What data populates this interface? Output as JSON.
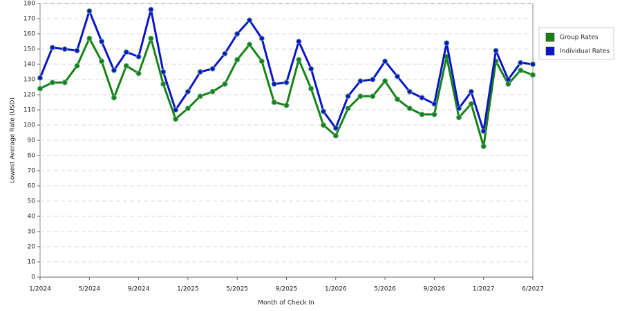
{
  "chart_data": {
    "type": "line",
    "x_label": "Month of Check In",
    "y_label": "Lowest Average Rate (USD)",
    "categories": [
      "1/2024",
      null,
      null,
      null,
      "5/2024",
      null,
      null,
      null,
      "9/2024",
      null,
      null,
      null,
      "1/2025",
      null,
      null,
      null,
      "5/2025",
      null,
      null,
      null,
      "9/2025",
      null,
      null,
      null,
      "1/2026",
      null,
      null,
      null,
      "5/2026",
      null,
      null,
      null,
      "9/2026",
      null,
      null,
      null,
      "1/2027",
      null,
      null,
      null,
      "6/2027"
    ],
    "series": [
      {
        "name": "Group Rates",
        "color": "#148214",
        "values": [
          124,
          128,
          128,
          139,
          157,
          142,
          118,
          139,
          134,
          157,
          127,
          104,
          111,
          119,
          122,
          127,
          143,
          153,
          142,
          115,
          113,
          143,
          124,
          100,
          93,
          111,
          119,
          119,
          129,
          117,
          111,
          107,
          107,
          145,
          105,
          114,
          86,
          142,
          127,
          136,
          133
        ]
      },
      {
        "name": "Individual Rates",
        "color": "#0a14c8",
        "values": [
          131,
          151,
          150,
          149,
          175,
          155,
          136,
          148,
          145,
          176,
          135,
          110,
          122,
          135,
          137,
          147,
          160,
          169,
          157,
          127,
          128,
          155,
          137,
          109,
          98,
          119,
          129,
          130,
          142,
          132,
          122,
          118,
          114,
          154,
          111,
          122,
          96,
          149,
          130,
          141,
          140
        ]
      }
    ],
    "ylim": [
      0,
      180
    ],
    "yticks": [
      0,
      10,
      20,
      30,
      40,
      50,
      60,
      70,
      80,
      90,
      100,
      110,
      120,
      130,
      140,
      150,
      160,
      170,
      180
    ],
    "grid": true,
    "legend": "right"
  }
}
